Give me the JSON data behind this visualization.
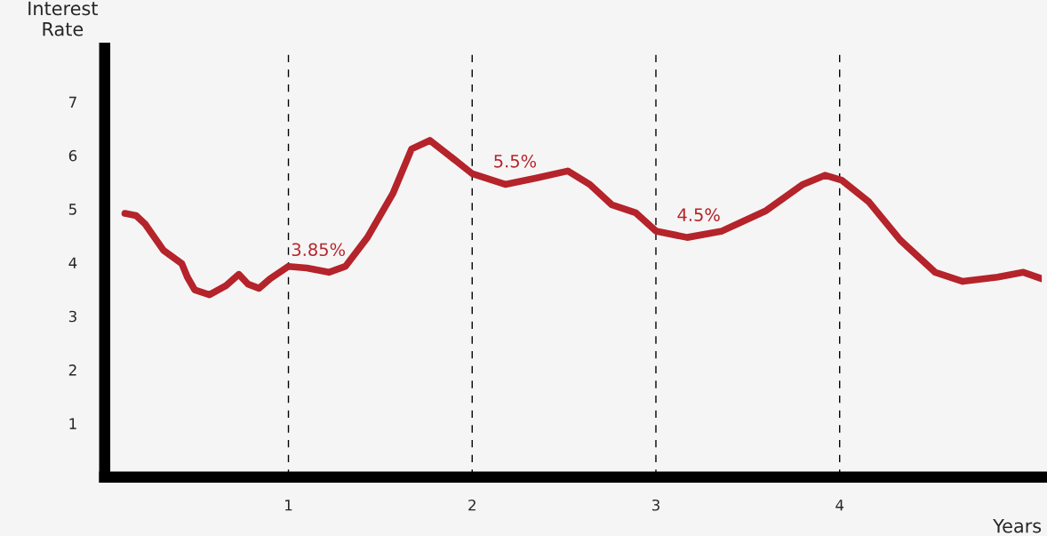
{
  "chart_data": {
    "type": "line",
    "xlabel": "Years",
    "ylabel": "Interest Rate",
    "x": [
      0.11,
      0.17,
      0.22,
      0.32,
      0.42,
      0.45,
      0.49,
      0.57,
      0.66,
      0.73,
      0.78,
      0.84,
      0.9,
      1.0,
      1.1,
      1.22,
      1.31,
      1.43,
      1.57,
      1.67,
      1.77,
      1.86,
      2.0,
      2.18,
      2.35,
      2.52,
      2.64,
      2.76,
      2.89,
      3.0,
      3.17,
      3.36,
      3.6,
      3.8,
      3.92,
      4.01,
      4.16,
      4.33,
      4.52,
      4.67,
      4.86,
      5.0,
      5.1
    ],
    "series": [
      {
        "color": "#b5232b",
        "values": [
          4.92,
          4.88,
          4.72,
          4.23,
          3.98,
          3.73,
          3.49,
          3.4,
          3.57,
          3.78,
          3.6,
          3.52,
          3.7,
          3.93,
          3.9,
          3.82,
          3.93,
          4.47,
          5.3,
          6.12,
          6.28,
          6.04,
          5.66,
          5.46,
          5.58,
          5.71,
          5.46,
          5.08,
          4.93,
          4.59,
          4.47,
          4.59,
          4.97,
          5.46,
          5.63,
          5.54,
          5.13,
          4.42,
          3.82,
          3.65,
          3.73,
          3.82,
          3.7
        ]
      }
    ],
    "annotations": [
      {
        "text": "3.85%",
        "x": 1.0,
        "y": 3.85
      },
      {
        "text": "5.5%",
        "x": 2.1,
        "y": 5.5
      },
      {
        "text": "4.5%",
        "x": 3.1,
        "y": 4.5
      }
    ],
    "xlim": [
      0,
      5.1
    ],
    "ylim": [
      0,
      8
    ],
    "xticks": [
      1,
      2,
      3,
      4
    ],
    "yticks": [
      1,
      2,
      3,
      4,
      5,
      6,
      7
    ],
    "grid": "x",
    "line_style": "solid",
    "marker": "none",
    "legend": false
  }
}
